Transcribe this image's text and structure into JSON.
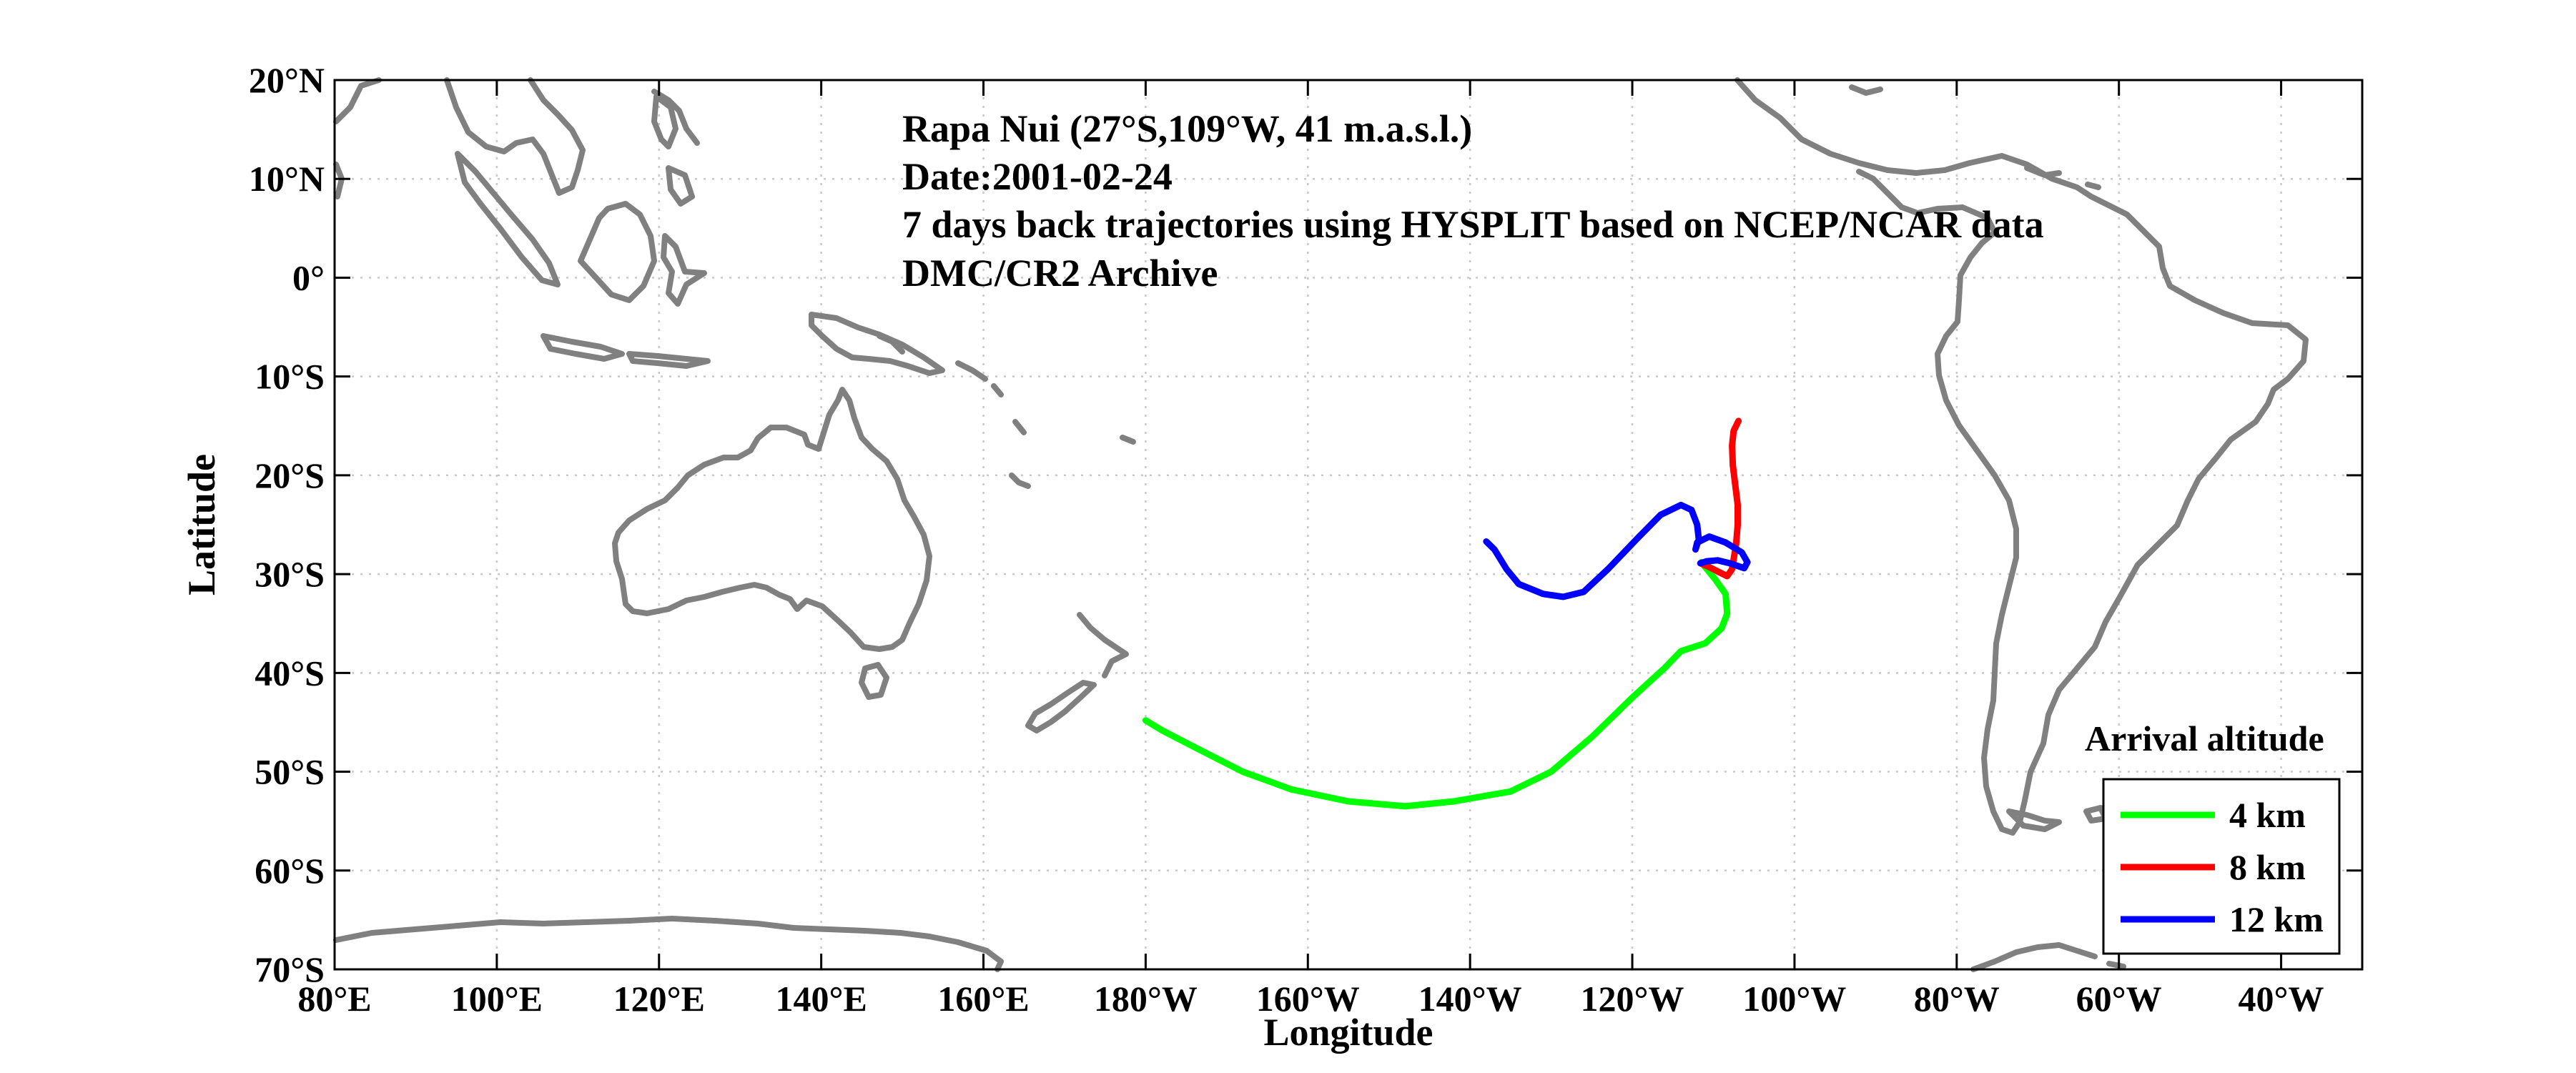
{
  "chart_data": {
    "type": "map-trajectories",
    "annotation_lines": [
      "Rapa Nui (27°S,109°W, 41 m.a.s.l.)",
      "Date:2001-02-24",
      "7 days back trajectories using HYSPLIT based on NCEP/NCAR data",
      "DMC/CR2 Archive"
    ],
    "xlabel": "Longitude",
    "ylabel": "Latitude",
    "xlim_lon_east": [
      80,
      330
    ],
    "ylim_lat": [
      -70,
      20
    ],
    "x_ticks": [
      {
        "lon": 80,
        "label": "80°E"
      },
      {
        "lon": 100,
        "label": "100°E"
      },
      {
        "lon": 120,
        "label": "120°E"
      },
      {
        "lon": 140,
        "label": "140°E"
      },
      {
        "lon": 160,
        "label": "160°E"
      },
      {
        "lon": 180,
        "label": "180°W"
      },
      {
        "lon": 200,
        "label": "160°W"
      },
      {
        "lon": 220,
        "label": "140°W"
      },
      {
        "lon": 240,
        "label": "120°W"
      },
      {
        "lon": 260,
        "label": "100°W"
      },
      {
        "lon": 280,
        "label": "80°W"
      },
      {
        "lon": 300,
        "label": "60°W"
      },
      {
        "lon": 320,
        "label": "40°W"
      }
    ],
    "y_ticks": [
      {
        "lat": 20,
        "label": "20°N"
      },
      {
        "lat": 10,
        "label": "10°N"
      },
      {
        "lat": 0,
        "label": "0°"
      },
      {
        "lat": -10,
        "label": "10°S"
      },
      {
        "lat": -20,
        "label": "20°S"
      },
      {
        "lat": -30,
        "label": "30°S"
      },
      {
        "lat": -40,
        "label": "40°S"
      },
      {
        "lat": -50,
        "label": "50°S"
      },
      {
        "lat": -60,
        "label": "60°S"
      },
      {
        "lat": -70,
        "label": "70°S"
      }
    ],
    "grid": true,
    "legend": {
      "title": "Arrival altitude",
      "placement": "bottom-right"
    },
    "coast_color": "#808080",
    "series": [
      {
        "name": "4 km",
        "color": "#00ff00",
        "points": [
          [
            180.0,
            -44.8
          ],
          [
            182,
            -45.8
          ],
          [
            186,
            -47.5
          ],
          [
            192,
            -50.0
          ],
          [
            198,
            -51.8
          ],
          [
            205,
            -53.0
          ],
          [
            212,
            -53.5
          ],
          [
            218,
            -53.0
          ],
          [
            225,
            -52.0
          ],
          [
            230,
            -50.0
          ],
          [
            235,
            -46.5
          ],
          [
            240,
            -42.5
          ],
          [
            244,
            -39.5
          ],
          [
            246,
            -37.8
          ],
          [
            249,
            -37.0
          ],
          [
            251,
            -35.5
          ],
          [
            251.7,
            -34.0
          ],
          [
            251.5,
            -32.0
          ],
          [
            250.2,
            -30.5
          ],
          [
            249.2,
            -29.5
          ],
          [
            248.5,
            -28.8
          ]
        ]
      },
      {
        "name": "8 km",
        "color": "#ff0000",
        "points": [
          [
            248.4,
            -28.9
          ],
          [
            249.5,
            -29.3
          ],
          [
            250.7,
            -29.8
          ],
          [
            251.7,
            -30.2
          ],
          [
            252.3,
            -29.5
          ],
          [
            252.5,
            -28.5
          ],
          [
            252.8,
            -27.0
          ],
          [
            253.0,
            -25.0
          ],
          [
            253.0,
            -23.0
          ],
          [
            252.7,
            -21.0
          ],
          [
            252.4,
            -19.0
          ],
          [
            252.3,
            -17.0
          ],
          [
            252.5,
            -15.5
          ],
          [
            253.1,
            -14.5
          ]
        ]
      },
      {
        "name": "12 km",
        "color": "#0000ff",
        "points": [
          [
            222.0,
            -26.7
          ],
          [
            223,
            -27.5
          ],
          [
            224.5,
            -29.5
          ],
          [
            226,
            -31.0
          ],
          [
            229,
            -32.0
          ],
          [
            231.5,
            -32.3
          ],
          [
            234,
            -31.8
          ],
          [
            237,
            -29.5
          ],
          [
            240.5,
            -26.5
          ],
          [
            243.5,
            -24.0
          ],
          [
            246,
            -23.0
          ],
          [
            247.3,
            -23.5
          ],
          [
            248.0,
            -25.0
          ],
          [
            248.2,
            -26.5
          ],
          [
            247.8,
            -27.5
          ],
          [
            248.0,
            -26.8
          ],
          [
            249.5,
            -26.2
          ],
          [
            251.5,
            -26.8
          ],
          [
            253.5,
            -27.8
          ],
          [
            254.2,
            -28.8
          ],
          [
            253.8,
            -29.4
          ],
          [
            252,
            -28.9
          ],
          [
            250.5,
            -28.6
          ],
          [
            249.2,
            -28.7
          ],
          [
            248.4,
            -28.9
          ]
        ]
      }
    ]
  }
}
